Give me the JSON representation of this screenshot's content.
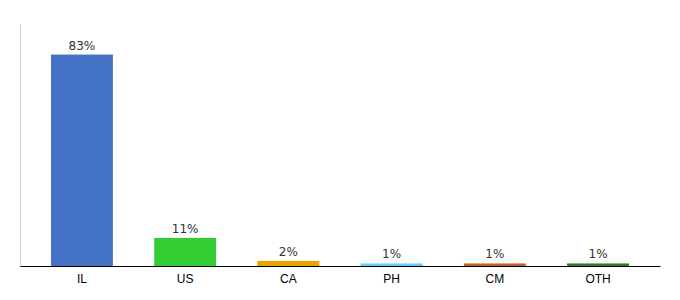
{
  "chart_data": {
    "type": "bar",
    "categories": [
      "IL",
      "US",
      "CA",
      "PH",
      "CM",
      "OTH"
    ],
    "values": [
      83,
      11,
      2,
      1,
      1,
      1
    ],
    "value_labels": [
      "83%",
      "11%",
      "2%",
      "1%",
      "1%",
      "1%"
    ],
    "colors": [
      "#4472c4",
      "#33cc33",
      "#e6a800",
      "#66ccff",
      "#c0622a",
      "#2d7a2d"
    ],
    "ylim": [
      0,
      95
    ],
    "data_labels": true,
    "tick_labels": "x",
    "grid": false
  }
}
